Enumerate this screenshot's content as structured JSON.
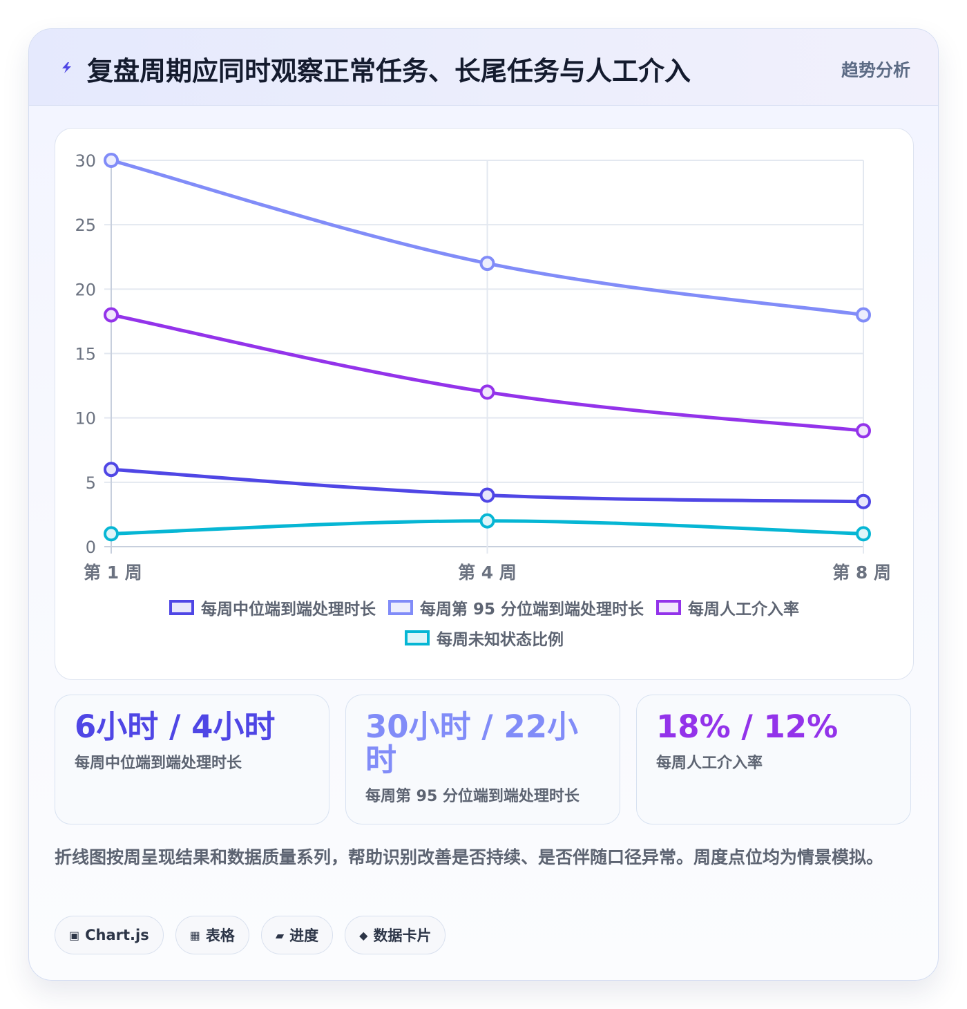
{
  "header": {
    "title": "复盘周期应同时观察正常任务、长尾任务与人工介入",
    "tag": "趋势分析",
    "accent_color": "#4f46e5"
  },
  "chart_data": {
    "type": "line",
    "categories": [
      "第 1 周",
      "第 4 周",
      "第 8 周"
    ],
    "ylim": [
      0,
      30
    ],
    "yticks": [
      0,
      5,
      10,
      15,
      20,
      25,
      30
    ],
    "grid": true,
    "legend_position": "bottom",
    "series": [
      {
        "name": "每周中位端到端处理时长",
        "values": [
          6,
          4,
          3.5
        ],
        "color": "#4f46e5",
        "fill": "#e8e7fb"
      },
      {
        "name": "每周第 95 分位端到端处理时长",
        "values": [
          30,
          22,
          18
        ],
        "color": "#818cf8",
        "fill": "#edeefd"
      },
      {
        "name": "每周人工介入率",
        "values": [
          18,
          12,
          9
        ],
        "color": "#9333ea",
        "fill": "#f1e6fc"
      },
      {
        "name": "每周未知状态比例",
        "values": [
          1,
          2,
          1
        ],
        "color": "#06b6d4",
        "fill": "#dff5f9"
      }
    ]
  },
  "stats": [
    {
      "value": "6小时 / 4小时",
      "label": "每周中位端到端处理时长",
      "color": "#4f46e5"
    },
    {
      "value": "30小时 / 22小时",
      "label": "每周第 95 分位端到端处理时长",
      "color": "#818cf8"
    },
    {
      "value": "18% / 12%",
      "label": "每周人工介入率",
      "color": "#9333ea"
    }
  ],
  "description": "折线图按周呈现结果和数据质量系列，帮助识别改善是否持续、是否伴随口径异常。周度点位均为情景模拟。",
  "chips": [
    {
      "icon": "▣",
      "icon_name": "chart-icon",
      "label": "Chart.js"
    },
    {
      "icon": "▦",
      "icon_name": "table-icon",
      "label": "表格"
    },
    {
      "icon": "▰",
      "icon_name": "progress-icon",
      "label": "进度"
    },
    {
      "icon": "◆",
      "icon_name": "card-icon",
      "label": "数据卡片"
    }
  ]
}
